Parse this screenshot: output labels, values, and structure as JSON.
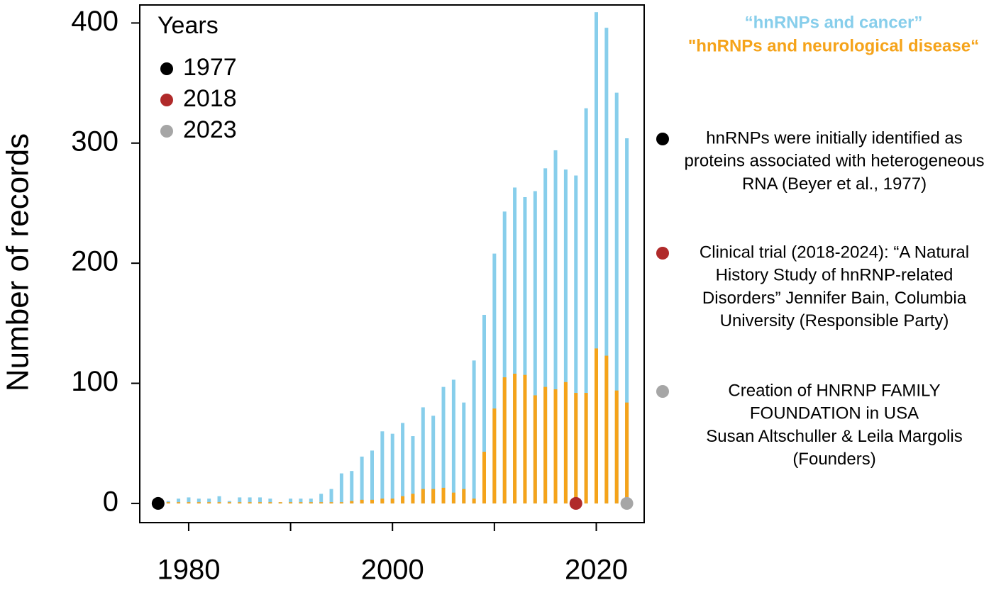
{
  "chart_data": {
    "type": "bar",
    "ylabel": "Number of records",
    "x": [
      1977,
      1978,
      1979,
      1980,
      1981,
      1982,
      1983,
      1984,
      1985,
      1986,
      1987,
      1988,
      1989,
      1990,
      1991,
      1992,
      1993,
      1994,
      1995,
      1996,
      1997,
      1998,
      1999,
      2000,
      2001,
      2002,
      2003,
      2004,
      2005,
      2006,
      2007,
      2008,
      2009,
      2010,
      2011,
      2012,
      2013,
      2014,
      2015,
      2016,
      2017,
      2018,
      2019,
      2020,
      2021,
      2022,
      2023
    ],
    "series": [
      {
        "name": "“hnRNPs and cancer”",
        "color": "#87ceeb",
        "values": [
          0,
          2,
          4,
          5,
          4,
          4,
          6,
          2,
          5,
          5,
          5,
          4,
          1,
          4,
          4,
          4,
          8,
          12,
          25,
          27,
          39,
          44,
          60,
          58,
          67,
          56,
          80,
          73,
          97,
          103,
          84,
          119,
          157,
          208,
          243,
          263,
          255,
          260,
          279,
          294,
          278,
          273,
          329,
          409,
          396,
          342,
          304
        ]
      },
      {
        "name": "\"hnRNPs and neurological disease“",
        "color": "#f5a31a",
        "values": [
          0,
          1,
          1,
          1,
          1,
          1,
          1,
          1,
          1,
          1,
          1,
          1,
          1,
          1,
          1,
          1,
          1,
          1,
          1,
          2,
          3,
          3,
          4,
          4,
          6,
          8,
          12,
          12,
          13,
          9,
          12,
          4,
          43,
          79,
          105,
          108,
          107,
          90,
          97,
          95,
          101,
          92,
          92,
          129,
          123,
          94,
          84
        ]
      }
    ],
    "xlim": [
      1975.2,
      2024.7
    ],
    "xticks": [
      1980,
      2000,
      2020
    ],
    "xminor_ticks": [
      1990,
      2010
    ],
    "ylim": [
      -16,
      415
    ],
    "yticks": [
      0,
      100,
      200,
      300,
      400
    ],
    "legend_title": "Years",
    "events": [
      {
        "year": 1977,
        "color": "#000000",
        "lines": [
          "hnRNPs were initially identified as",
          "proteins associated with heterogeneous",
          "RNA (Beyer et al., 1977)"
        ]
      },
      {
        "year": 2018,
        "color": "#b02a2a",
        "lines": [
          "Clinical trial (2018-2024): “A Natural",
          "History Study of hnRNP-related",
          "Disorders”  Jennifer Bain, Columbia",
          "University  (Responsible Party)"
        ]
      },
      {
        "year": 2023,
        "color": "#a6a6a6",
        "lines": [
          "Creation of HNRNP FAMILY",
          "FOUNDATION in USA",
          "Susan Altschuller & Leila Margolis",
          "(Founders)"
        ]
      }
    ]
  }
}
